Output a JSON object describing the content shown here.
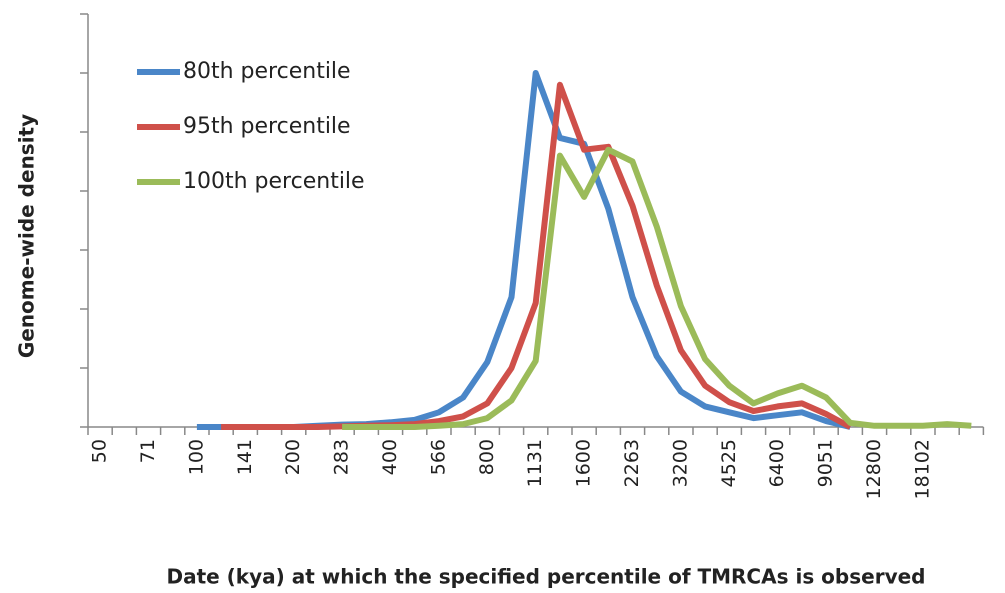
{
  "chart_data": {
    "type": "line",
    "x_label": "Date (kya) at which the specified percentile of TMRCAs is observed",
    "y_label": "Genome-wide density",
    "categories": [
      "50",
      null,
      "71",
      null,
      "100",
      null,
      "141",
      null,
      "200",
      null,
      "283",
      null,
      "400",
      null,
      "566",
      null,
      "800",
      null,
      "1131",
      null,
      "1600",
      null,
      "2263",
      null,
      "3200",
      null,
      "4525",
      null,
      "6400",
      null,
      "9051",
      null,
      "12800",
      null,
      "18102",
      null,
      null
    ],
    "ylim": [
      0,
      7
    ],
    "yticks": [
      0,
      1,
      2,
      3,
      4,
      5,
      6,
      7
    ],
    "legend": "top-left",
    "series": [
      {
        "name": "80th percentile",
        "color": "#4a86c8",
        "values": [
          null,
          null,
          null,
          null,
          0,
          0,
          0,
          0,
          0,
          0.02,
          0.04,
          0.05,
          0.08,
          0.12,
          0.25,
          0.5,
          1.1,
          2.2,
          6.0,
          4.9,
          4.8,
          3.7,
          2.2,
          1.2,
          0.6,
          0.35,
          0.25,
          0.15,
          0.2,
          0.25,
          0.1,
          0,
          null,
          null,
          null,
          null,
          null
        ]
      },
      {
        "name": "95th percentile",
        "color": "#cf504a",
        "values": [
          null,
          null,
          null,
          null,
          null,
          0,
          0,
          0,
          0,
          0,
          0.01,
          0.02,
          0.03,
          0.05,
          0.1,
          0.18,
          0.4,
          1.0,
          2.1,
          5.8,
          4.7,
          4.75,
          3.75,
          2.4,
          1.3,
          0.7,
          0.42,
          0.27,
          0.35,
          0.4,
          0.22,
          0,
          null,
          null,
          null,
          null,
          null
        ]
      },
      {
        "name": "100th percentile",
        "color": "#9bbb59",
        "values": [
          null,
          null,
          null,
          null,
          null,
          null,
          null,
          null,
          null,
          null,
          0,
          0,
          0,
          0,
          0.02,
          0.05,
          0.15,
          0.45,
          1.12,
          4.6,
          3.9,
          4.7,
          4.5,
          3.4,
          2.05,
          1.15,
          0.7,
          0.4,
          0.57,
          0.7,
          0.5,
          0.07,
          0.02,
          0.02,
          0.02,
          0.05,
          0.02
        ]
      }
    ]
  }
}
